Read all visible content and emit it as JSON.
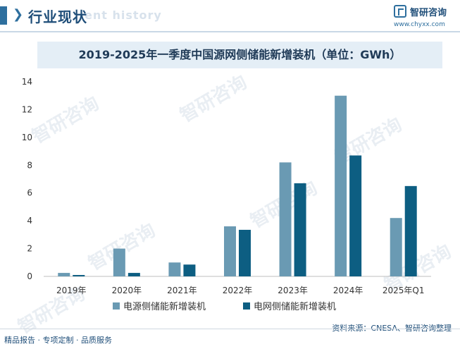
{
  "header": {
    "title": "行业现状",
    "ghost_text": "ent history",
    "brand_name": "智研咨询",
    "brand_url": "www.chyxx.com"
  },
  "watermark_text": "智研咨询",
  "chart_data": {
    "type": "bar",
    "title": "2019-2025年一季度中国源网侧储能新增装机（单位：GWh）",
    "categories": [
      "2019年",
      "2020年",
      "2021年",
      "2022年",
      "2023年",
      "2024年",
      "2025年Q1"
    ],
    "series": [
      {
        "name": "电源侧储能新增装机",
        "values": [
          0.25,
          2.0,
          1.0,
          3.6,
          8.2,
          13.0,
          4.2
        ],
        "color": "#6a9ab3"
      },
      {
        "name": "电网侧储能新增装机",
        "values": [
          0.1,
          0.25,
          0.85,
          3.35,
          6.7,
          8.7,
          6.5
        ],
        "color": "#0d5e82"
      }
    ],
    "yticks": [
      "0",
      "2",
      "4",
      "6",
      "8",
      "10",
      "12",
      "14"
    ],
    "ylim": [
      0,
      14
    ],
    "grid": false,
    "legend": "bottom"
  },
  "footer": {
    "left": "精品报告 · 专项定制 · 品质服务",
    "right": "资料来源：CNESA、智研咨询整理"
  }
}
